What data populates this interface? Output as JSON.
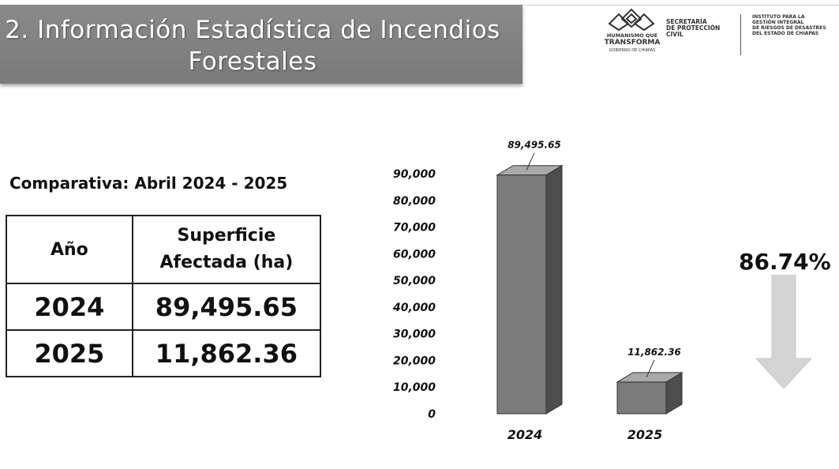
{
  "header": {
    "title_line1": "2. Información Estadística de Incendios",
    "title_line2": "Forestales"
  },
  "logos": {
    "gov_line1": "HUMANISMO QUE",
    "gov_line2": "TRANSFORMA",
    "gov_line3": "GOBIERNO DE CHIAPAS",
    "secretaria_lines": [
      "SECRETARÍA",
      "DE PROTECCIÓN",
      "CIVIL"
    ],
    "instituto_lines": [
      "INSTITUTO PARA LA",
      "GESTIÓN INTEGRAL",
      "DE RIESGOS DE DESASTRES",
      "DEL ESTADO DE CHIAPAS"
    ]
  },
  "comparison": {
    "heading": "Comparativa: Abril 2024 - 2025",
    "table": {
      "headers": [
        "Año",
        "Superficie Afectada (ha)"
      ],
      "header_b_lines": [
        "Superficie",
        "Afectada (ha)"
      ],
      "rows": [
        {
          "year": "2024",
          "area": "89,495.65"
        },
        {
          "year": "2025",
          "area": "11,862.36"
        }
      ]
    }
  },
  "chart_data": {
    "type": "bar",
    "categories": [
      "2024",
      "2025"
    ],
    "values": [
      89495.65,
      11862.36
    ],
    "data_labels": [
      "89,495.65",
      "11,862.36"
    ],
    "ylim": [
      0,
      90000
    ],
    "y_ticks": [
      0,
      10000,
      20000,
      30000,
      40000,
      50000,
      60000,
      70000,
      80000,
      90000
    ],
    "y_tick_labels": [
      "0",
      "10,000",
      "20,000",
      "30,000",
      "40,000",
      "50,000",
      "60,000",
      "70,000",
      "80,000",
      "90,000"
    ],
    "title": "",
    "xlabel": "",
    "ylabel": "",
    "grid": false,
    "legend": "none",
    "style": "3d-column"
  },
  "reduction": {
    "percent_label": "86.74%",
    "direction": "down-arrow-icon"
  },
  "colors": {
    "banner": "#808080",
    "bar_front": "#7b7b7b",
    "bar_side": "#4d4d4d",
    "bar_top": "#a9a9a9",
    "arrow": "#d4d4d4"
  }
}
